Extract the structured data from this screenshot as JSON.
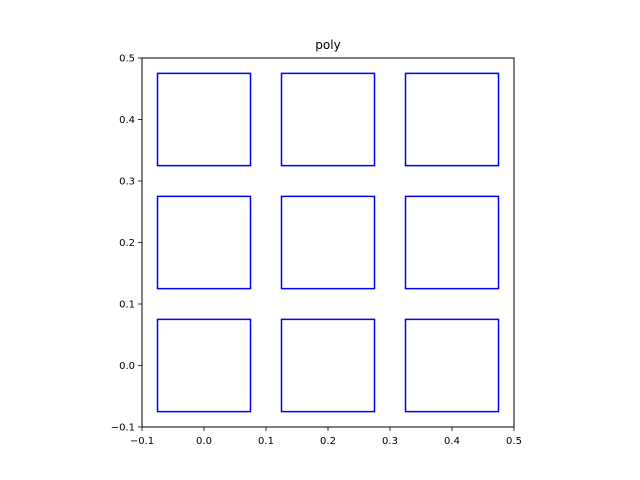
{
  "chart_data": {
    "type": "polygon",
    "title": "poly",
    "xlabel": "",
    "ylabel": "",
    "xlim": [
      -0.1,
      0.5
    ],
    "ylim": [
      -0.1,
      0.5
    ],
    "grid": false,
    "aspect": "equal",
    "x_ticks": [
      -0.1,
      0.0,
      0.1,
      0.2,
      0.3,
      0.4,
      0.5
    ],
    "x_tick_labels": [
      "−0.1",
      "0.0",
      "0.1",
      "0.2",
      "0.3",
      "0.4",
      "0.5"
    ],
    "y_ticks": [
      -0.1,
      0.0,
      0.1,
      0.2,
      0.3,
      0.4,
      0.5
    ],
    "y_tick_labels": [
      "−0.1",
      "0.0",
      "0.1",
      "0.2",
      "0.3",
      "0.4",
      "0.5"
    ],
    "series_color": "#0000ff",
    "polygons": [
      {
        "vertices": [
          [
            -0.075,
            -0.075
          ],
          [
            0.075,
            -0.075
          ],
          [
            0.075,
            0.075
          ],
          [
            -0.075,
            0.075
          ]
        ]
      },
      {
        "vertices": [
          [
            0.125,
            -0.075
          ],
          [
            0.275,
            -0.075
          ],
          [
            0.275,
            0.075
          ],
          [
            0.125,
            0.075
          ]
        ]
      },
      {
        "vertices": [
          [
            0.325,
            -0.075
          ],
          [
            0.475,
            -0.075
          ],
          [
            0.475,
            0.075
          ],
          [
            0.325,
            0.075
          ]
        ]
      },
      {
        "vertices": [
          [
            -0.075,
            0.125
          ],
          [
            0.075,
            0.125
          ],
          [
            0.075,
            0.275
          ],
          [
            -0.075,
            0.275
          ]
        ]
      },
      {
        "vertices": [
          [
            0.125,
            0.125
          ],
          [
            0.275,
            0.125
          ],
          [
            0.275,
            0.275
          ],
          [
            0.125,
            0.275
          ]
        ]
      },
      {
        "vertices": [
          [
            0.325,
            0.125
          ],
          [
            0.475,
            0.125
          ],
          [
            0.475,
            0.275
          ],
          [
            0.325,
            0.275
          ]
        ]
      },
      {
        "vertices": [
          [
            -0.075,
            0.325
          ],
          [
            0.075,
            0.325
          ],
          [
            0.075,
            0.475
          ],
          [
            -0.075,
            0.475
          ]
        ]
      },
      {
        "vertices": [
          [
            0.125,
            0.325
          ],
          [
            0.275,
            0.325
          ],
          [
            0.275,
            0.475
          ],
          [
            0.125,
            0.475
          ]
        ]
      },
      {
        "vertices": [
          [
            0.325,
            0.325
          ],
          [
            0.475,
            0.325
          ],
          [
            0.475,
            0.475
          ],
          [
            0.325,
            0.475
          ]
        ]
      }
    ]
  }
}
